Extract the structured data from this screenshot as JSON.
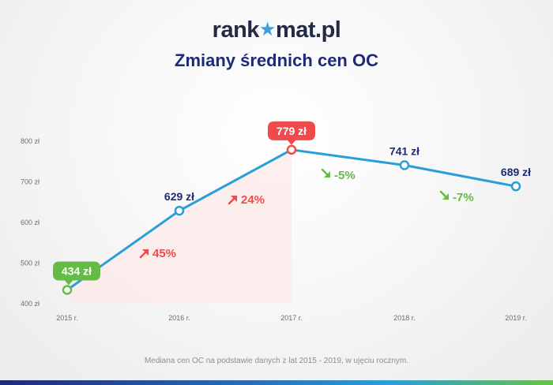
{
  "brand": {
    "name_left": "rank",
    "name_right": "mat.pl",
    "star_glyph": "★"
  },
  "title": "Zmiany średnich cen OC",
  "caption": "Mediana cen OC na podstawie danych z lat 2015 - 2019, w ujęciu rocznym.",
  "colors": {
    "line": "#2a9ed8",
    "navy": "#1e2a78",
    "green": "#66bb46",
    "red": "#f04a4a",
    "axis_text": "#6b6f78",
    "fill": "#fde9e9"
  },
  "chart_data": {
    "type": "line",
    "categories": [
      "2015 r.",
      "2016 r.",
      "2017 r.",
      "2018 r.",
      "2019 r."
    ],
    "values": [
      434,
      629,
      779,
      741,
      689
    ],
    "point_labels": [
      "434 zł",
      "629 zł",
      "779 zł",
      "741 zł",
      "689 zł"
    ],
    "yticks": [
      400,
      500,
      600,
      700,
      800
    ],
    "ytick_labels": [
      "400 zł",
      "500 zł",
      "600 zł",
      "700 zł",
      "800 zł"
    ],
    "ylim": [
      400,
      800
    ],
    "changes": [
      {
        "label": "45%",
        "direction": "up"
      },
      {
        "label": "24%",
        "direction": "up"
      },
      {
        "label": "-5%",
        "direction": "down"
      },
      {
        "label": "-7%",
        "direction": "down"
      }
    ],
    "highlight": {
      "min_index": 0,
      "max_index": 2
    },
    "shaded_area": "2015 r. – 2017 r.",
    "grid": false
  }
}
